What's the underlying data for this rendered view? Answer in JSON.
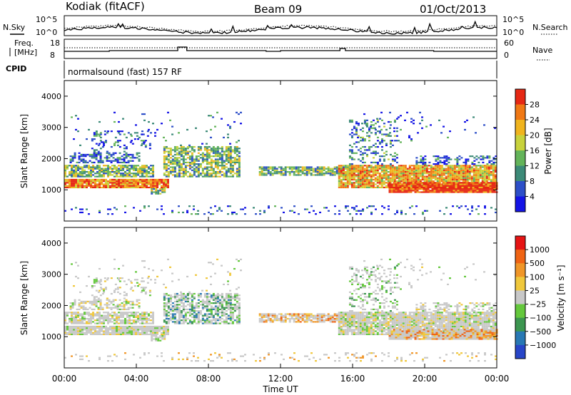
{
  "header": {
    "station": "Kodiak (fitACF)",
    "beam": "Beam 09",
    "date": "01/Oct/2013"
  },
  "noise_panel": {
    "left_label": "N.Sky",
    "right_label": "N.Search",
    "ticks": [
      "10^5",
      "10^0"
    ]
  },
  "freq_panel": {
    "left_label_1": "Freq.",
    "left_label_2": "[MHz]",
    "left_ticks": [
      "18",
      "8"
    ],
    "right_label": "Nave",
    "right_ticks": [
      "60",
      "0"
    ]
  },
  "cpid": {
    "label": "CPID",
    "value": "normalsound (fast) 157 RF"
  },
  "chart_data": [
    {
      "type": "heatmap",
      "name": "power",
      "ylabel": "Slant Range [km]",
      "ylim": [
        0,
        4500
      ],
      "yticks": [
        "1000",
        "2000",
        "3000",
        "4000"
      ],
      "xlim": [
        "00:00",
        "24:00"
      ],
      "colorbar": {
        "label": "Power [dB]",
        "ticks": [
          "4",
          "8",
          "12",
          "16",
          "20",
          "24",
          "28"
        ],
        "colors": [
          "#1414e6",
          "#2d4fc8",
          "#3c8a78",
          "#64b45a",
          "#c8d23c",
          "#f0b41e",
          "#f07814",
          "#e62814"
        ]
      }
    },
    {
      "type": "heatmap",
      "name": "velocity",
      "ylabel": "Slant Range [km]",
      "ylim": [
        0,
        4500
      ],
      "yticks": [
        "1000",
        "2000",
        "3000",
        "4000"
      ],
      "xlim": [
        "00:00",
        "24:00"
      ],
      "colorbar": {
        "label": "Velocity [m s⁻¹]",
        "ticks": [
          "1000",
          "500",
          "100",
          "25",
          "−25",
          "−100",
          "−500",
          "−1000"
        ],
        "colors": [
          "#2846c8",
          "#2878b4",
          "#3c9650",
          "#64c83c",
          "#c8c8c8",
          "#f0c83c",
          "#f09628",
          "#f06414",
          "#e61414"
        ]
      }
    }
  ],
  "xaxis": {
    "label": "Time UT",
    "ticks": [
      "00:00",
      "04:00",
      "08:00",
      "12:00",
      "16:00",
      "20:00",
      "00:00"
    ]
  }
}
